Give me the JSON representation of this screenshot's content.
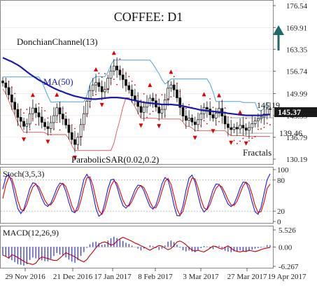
{
  "title": "COFFEE: D1",
  "indicators": {
    "donchian": "DonchianChannel(13)",
    "ma": "MA(50)",
    "sar": "ParabolicSAR(0.02,0.2)",
    "fractals": "Fractals",
    "stoch": "Stoch(3,5,3)",
    "macd": "MACD(12,26,9)"
  },
  "annotations": {
    "level_upper": "145.19",
    "level_lower": "139.46",
    "current_price": "145.37"
  },
  "colors": {
    "ma": "#1a1aa8",
    "donchian": "#4aa3d8",
    "sar": "#e00000",
    "arrow": "#1e6a6a",
    "stoch_k": "#1a1ae0",
    "stoch_d": "#e00000",
    "macd_hist": "#3a3ad0",
    "macd_signal": "#c00000",
    "price_label_bg": "#1a1a1a"
  },
  "chart_data": [
    {
      "type": "candlestick",
      "panel": "main",
      "title": "COFFEE: D1",
      "y_ticks": [
        "176.54",
        "169.91",
        "163.35",
        "156.74",
        "149.99",
        "143.35",
        "136.79",
        "130.19"
      ],
      "ylim": [
        130.19,
        176.54
      ],
      "x_ticks": [
        "29 Nov 2016",
        "21 Dec 2016",
        "17 Jan 2017",
        "8 Feb 2017",
        "3 Mar 2017",
        "27 Mar 2017",
        "19 Apr 2017"
      ],
      "close": [
        153.2,
        151.8,
        149.6,
        147.4,
        145.2,
        142.8,
        141.6,
        140.1,
        140.8,
        143.9,
        145.6,
        144.2,
        142.9,
        141.3,
        140.0,
        139.4,
        141.2,
        143.3,
        145.7,
        143.8,
        142.3,
        140.5,
        138.2,
        136.1,
        134.6,
        136.8,
        140.6,
        143.9,
        147.7,
        150.9,
        152.6,
        153.3,
        152.1,
        150.5,
        151.2,
        154.6,
        156.8,
        158.3,
        157.1,
        155.6,
        154.2,
        152.4,
        151.1,
        149.3,
        147.8,
        146.1,
        144.3,
        145.9,
        147.2,
        148.6,
        147.8,
        145.9,
        144.1,
        145.2,
        148.1,
        151.6,
        152.6,
        151.1,
        148.7,
        145.8,
        143.2,
        141.9,
        142.6,
        141.4,
        140.6,
        142.1,
        143.9,
        145.8,
        145.3,
        143.6,
        142.6,
        144.1,
        145.5,
        143.2,
        140.8,
        139.7,
        139.1,
        139.8,
        139.3,
        140.4,
        139.6,
        138.9,
        139.7,
        140.9,
        141.8,
        142.4,
        142.9,
        143.8,
        145.4,
        145.37
      ],
      "ma50": [
        160.8,
        160.4,
        160.0,
        159.6,
        159.1,
        158.6,
        158.0,
        157.3,
        156.6,
        155.9,
        155.3,
        154.7,
        154.1,
        153.6,
        153.1,
        152.6,
        152.1,
        151.6,
        151.2,
        150.8,
        150.5,
        150.1,
        149.8,
        149.5,
        149.2,
        149.0,
        148.8,
        148.6,
        148.5,
        148.4,
        148.3,
        148.3,
        148.4,
        148.5,
        148.6,
        148.7,
        148.8,
        148.8,
        148.8,
        148.7,
        148.6,
        148.5,
        148.3,
        148.1,
        147.9,
        147.7,
        147.5,
        147.3,
        147.2,
        147.1,
        147.0,
        146.9,
        146.8,
        146.7,
        146.7,
        146.7,
        146.7,
        146.6,
        146.5,
        146.4,
        146.2,
        146.0,
        145.8,
        145.6,
        145.4,
        145.2,
        145.0,
        144.9,
        144.8,
        144.7,
        144.6,
        144.5,
        144.4,
        144.3,
        144.2,
        144.0,
        143.9,
        143.8,
        143.7,
        143.6,
        143.5,
        143.4,
        143.4,
        143.4,
        143.4,
        143.4,
        143.4,
        143.5,
        143.6,
        143.7
      ]
    },
    {
      "type": "line",
      "panel": "stoch",
      "title": "Stoch(3,5,3)",
      "y_ticks": [
        "100",
        "80",
        "20",
        "0"
      ],
      "ylim": [
        0,
        100
      ],
      "levels": [
        80,
        20
      ]
    },
    {
      "type": "bar",
      "panel": "macd",
      "title": "MACD(12,26,9)",
      "y_ticks": [
        "5.526",
        "0.00",
        "-6.267"
      ],
      "ylim": [
        -6.267,
        5.526
      ]
    }
  ]
}
